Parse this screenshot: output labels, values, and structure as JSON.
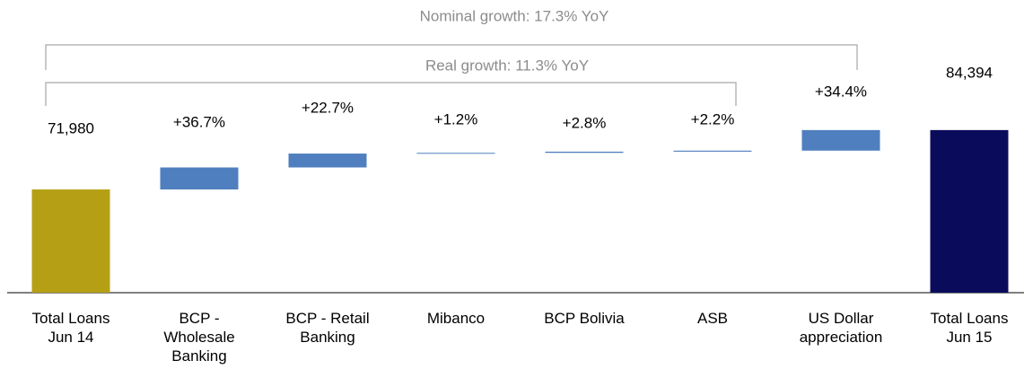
{
  "chart_data": {
    "type": "waterfall",
    "annotations": [
      "Nominal growth: 17.3% YoY",
      "Real growth: 11.3% YoY"
    ],
    "categories": [
      "Total Loans\nJun 14",
      "BCP -\nWholesale\nBanking",
      "BCP - Retail\nBanking",
      "Mibanco",
      "BCP Bolivia",
      "ASB",
      "US Dollar\nappreciation",
      "Total Loans\nJun 15"
    ],
    "kinds": [
      "total",
      "delta",
      "delta",
      "delta",
      "delta",
      "delta",
      "delta",
      "total"
    ],
    "values": [
      71980,
      4600,
      2900,
      150,
      250,
      214,
      4300,
      84394
    ],
    "value_labels": [
      "71,980",
      null,
      null,
      null,
      null,
      null,
      null,
      "84,394"
    ],
    "growth_labels": [
      null,
      "+36.7%",
      "+22.7%",
      "+1.2%",
      "+2.8%",
      "+2.2%",
      "+34.4%",
      null
    ],
    "colors": {
      "start": "#b5a015",
      "delta": "#4f7fbe",
      "end": "#0b0b5c"
    },
    "ylim": [
      50400,
      90000
    ]
  }
}
